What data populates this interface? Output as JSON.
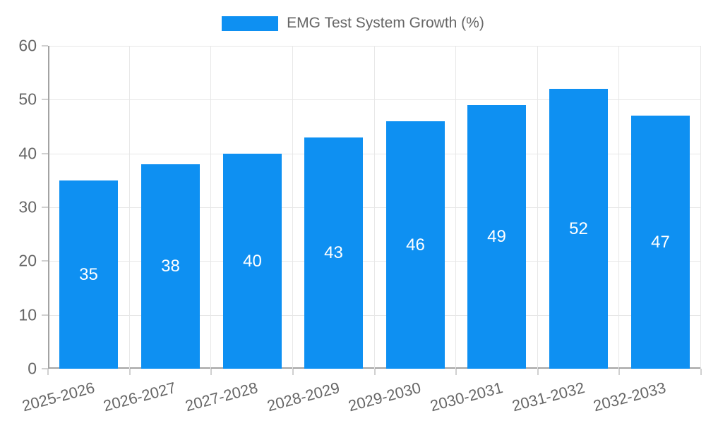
{
  "chart_data": {
    "type": "bar",
    "title": "",
    "series_name": "EMG Test System Growth (%)",
    "categories": [
      "2025-2026",
      "2026-2027",
      "2027-2028",
      "2028-2029",
      "2029-2030",
      "2030-2031",
      "2031-2032",
      "2032-2033"
    ],
    "values": [
      35,
      38,
      40,
      43,
      46,
      49,
      52,
      47
    ],
    "xlabel": "",
    "ylabel": "",
    "ylim": [
      0,
      60
    ],
    "yticks": [
      0,
      10,
      20,
      30,
      40,
      50,
      60
    ],
    "grid": true,
    "legend_position": "top-center",
    "x_label_rotation_deg": -15,
    "data_labels": "centered-inside-bars",
    "colors": {
      "bar": "#0e90f2",
      "data_label": "#ffffff",
      "axis_text": "#666666",
      "grid_line": "#e7e7e7",
      "axis_line": "#a3a3a3",
      "tick_mark": "#d0d0d0",
      "background": "#ffffff"
    }
  }
}
